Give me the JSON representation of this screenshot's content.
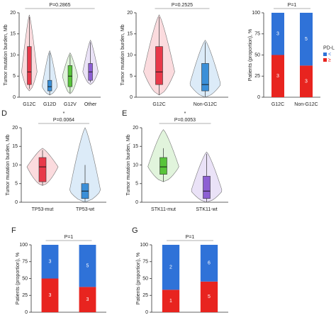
{
  "chart_data": [
    {
      "type": "violin",
      "y_label": "Tumor mutation burden, Mb",
      "p_text": "P=0.2865",
      "ylim": [
        0,
        20
      ],
      "yticks": [
        0,
        5,
        10,
        15,
        20
      ],
      "groups": [
        {
          "name": "G12C",
          "color": "#e8394a",
          "violin": [
            1.5,
            19.5
          ],
          "whiskers": [
            2,
            19
          ],
          "box": [
            3,
            12
          ],
          "median": 6
        },
        {
          "name": "G12D",
          "color": "#3a8fd8",
          "violin": [
            0.5,
            11
          ],
          "whiskers": [
            0.5,
            10.5
          ],
          "box": [
            1.5,
            4
          ],
          "median": 2.5
        },
        {
          "name": "G12V",
          "color": "#58c43a",
          "violin": [
            0.8,
            10.5
          ],
          "whiskers": [
            1,
            10
          ],
          "box": [
            2.5,
            7.5
          ],
          "median": 5
        },
        {
          "name": "Other",
          "color": "#8d5fd3",
          "violin": [
            3,
            13.5
          ],
          "whiskers": [
            3.5,
            13
          ],
          "box": [
            4,
            8
          ],
          "median": 6
        }
      ]
    },
    {
      "type": "violin",
      "y_label": "Tumor mutation burden, Mb",
      "p_text": "P=0.2525",
      "ylim": [
        0,
        20
      ],
      "yticks": [
        0,
        5,
        10,
        15,
        20
      ],
      "groups": [
        {
          "name": "G12C",
          "color": "#e8394a",
          "violin": [
            0.5,
            19.5
          ],
          "whiskers": [
            0.5,
            19
          ],
          "box": [
            3,
            12
          ],
          "median": 6
        },
        {
          "name": "Non-G12C",
          "color": "#3a8fd8",
          "violin": [
            0,
            13.5
          ],
          "whiskers": [
            0,
            13
          ],
          "box": [
            1.5,
            8
          ],
          "median": 3
        }
      ]
    },
    {
      "type": "stacked_bar",
      "y_label": "Patients (proportion), %",
      "p_text": "P=1",
      "ylim": [
        0,
        100
      ],
      "yticks": [
        0,
        25,
        50,
        75,
        100
      ],
      "categories": [
        "G12C",
        "Non-G12C"
      ],
      "legend_title": "PD-L",
      "series": [
        {
          "name": "≥",
          "color": "#e8241f",
          "values": [
            50,
            37.5
          ],
          "counts": [
            3,
            3
          ]
        },
        {
          "name": "<",
          "color": "#2f72d8",
          "values": [
            50,
            62.5
          ],
          "counts": [
            3,
            5
          ]
        }
      ]
    },
    {
      "type": "violin",
      "panel_label": "D",
      "y_label": "Tumor mutation burden, Mb",
      "p_text": "P=0.0064",
      "sig": "*",
      "ylim": [
        0,
        20
      ],
      "yticks": [
        0,
        5,
        10,
        15,
        20
      ],
      "groups": [
        {
          "name": "TP53-mut",
          "color": "#e8394a",
          "violin": [
            4.5,
            14.5
          ],
          "whiskers": [
            4.5,
            14
          ],
          "box": [
            5.5,
            12
          ],
          "median": 9.5
        },
        {
          "name": "TP53-wt",
          "color": "#3a8fd8",
          "violin": [
            0,
            20
          ],
          "whiskers": [
            0,
            10
          ],
          "box": [
            1,
            5
          ],
          "median": 3
        }
      ]
    },
    {
      "type": "violin",
      "panel_label": "E",
      "y_label": "Tumor mutation burden, Mb",
      "p_text": "P=0.0053",
      "sig": "*",
      "ylim": [
        0,
        20
      ],
      "yticks": [
        0,
        5,
        10,
        15,
        20
      ],
      "groups": [
        {
          "name": "STK11-mut",
          "color": "#58c43a",
          "violin": [
            5.5,
            19.5
          ],
          "whiskers": [
            5.5,
            14.5
          ],
          "box": [
            7.5,
            12
          ],
          "median": 9.5
        },
        {
          "name": "STK11-wt",
          "color": "#8d5fd3",
          "violin": [
            0,
            13.5
          ],
          "whiskers": [
            0,
            13
          ],
          "box": [
            1,
            7
          ],
          "median": 3
        }
      ]
    },
    {
      "type": "stacked_bar",
      "panel_label": "F",
      "y_label": "Patients (proportion), %",
      "p_text": "P=1",
      "ylim": [
        0,
        100
      ],
      "yticks": [
        0,
        25,
        50,
        75,
        100
      ],
      "series": [
        {
          "color": "#e8241f",
          "values": [
            50,
            37.5
          ],
          "counts": [
            3,
            3
          ]
        },
        {
          "color": "#2f72d8",
          "values": [
            50,
            62.5
          ],
          "counts": [
            3,
            5
          ]
        }
      ]
    },
    {
      "type": "stacked_bar",
      "panel_label": "G",
      "y_label": "Patients (proportion), %",
      "p_text": "P=1",
      "ylim": [
        0,
        100
      ],
      "yticks": [
        0,
        25,
        50,
        75,
        100
      ],
      "series": [
        {
          "color": "#e8241f",
          "values": [
            33.3,
            45.5
          ],
          "counts": [
            1,
            5
          ]
        },
        {
          "color": "#2f72d8",
          "values": [
            66.7,
            54.5
          ],
          "counts": [
            2,
            6
          ]
        }
      ]
    }
  ]
}
